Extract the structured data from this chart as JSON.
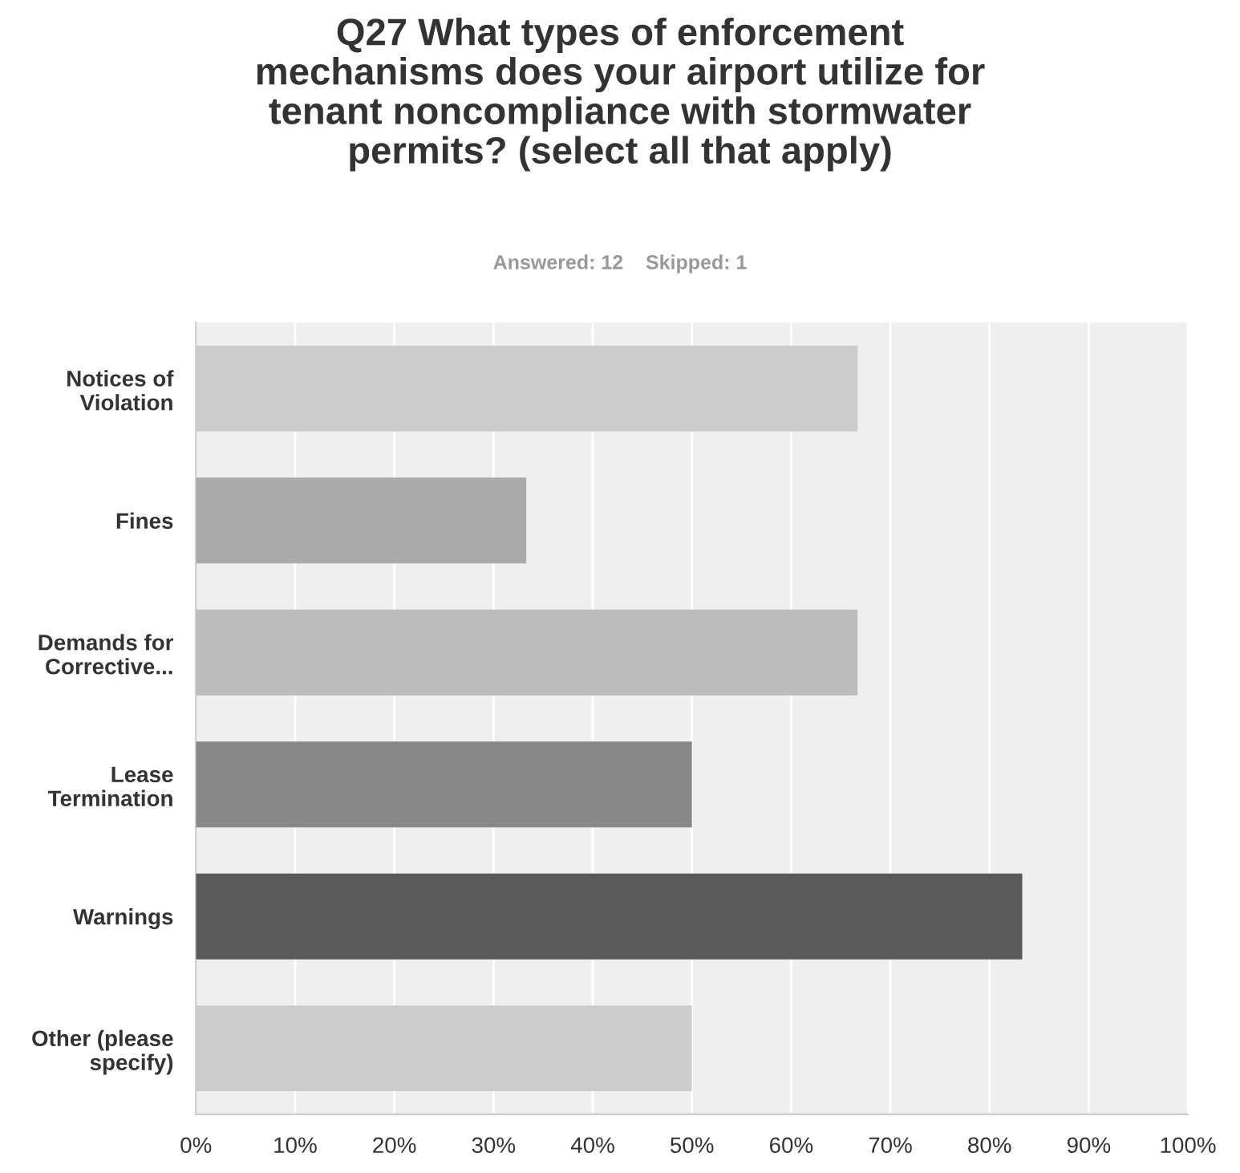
{
  "chart_data": {
    "type": "bar",
    "orientation": "horizontal",
    "title": "Q27 What types of enforcement\nmechanisms does your airport utilize for\ntenant noncompliance with stormwater\npermits? (select all that apply)",
    "subtitle": "Answered: 12    Skipped: 1",
    "categories": [
      "Notices of\nViolation",
      "Fines",
      "Demands for\nCorrective...",
      "Lease\nTermination",
      "Warnings",
      "Other (please\nspecify)"
    ],
    "values": [
      66.7,
      33.3,
      66.7,
      50,
      83.3,
      50
    ],
    "colors": [
      "#cccccc",
      "#aaaaaa",
      "#bcbcbc",
      "#888888",
      "#5a5a5a",
      "#cccccc"
    ],
    "xlim": [
      0,
      100
    ],
    "xticks": [
      {
        "value": 0,
        "label": "0%"
      },
      {
        "value": 10,
        "label": "10%"
      },
      {
        "value": 20,
        "label": "20%"
      },
      {
        "value": 30,
        "label": "30%"
      },
      {
        "value": 40,
        "label": "40%"
      },
      {
        "value": 50,
        "label": "50%"
      },
      {
        "value": 60,
        "label": "60%"
      },
      {
        "value": 70,
        "label": "70%"
      },
      {
        "value": 80,
        "label": "80%"
      },
      {
        "value": 90,
        "label": "90%"
      },
      {
        "value": 100,
        "label": "100%"
      }
    ],
    "grid": "x",
    "legend": false
  }
}
